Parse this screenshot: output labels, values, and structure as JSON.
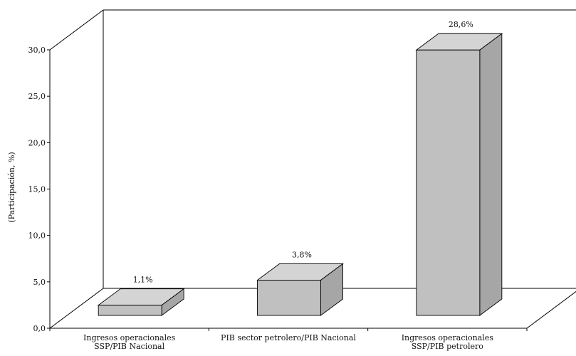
{
  "chart_data": {
    "type": "bar",
    "title": "",
    "xlabel": "",
    "ylabel": "(Participación, %)",
    "ylim": [
      0,
      30
    ],
    "yticks": [
      "0,0",
      "5,0",
      "10,0",
      "15,0",
      "20,0",
      "25,0",
      "30,0"
    ],
    "categories": [
      [
        "Ingresos operacionales",
        "SSP/PIB Nacional"
      ],
      [
        "PIB sector petrolero/PIB Nacional"
      ],
      [
        "Ingresos operacionales",
        "SSP/PIB petrolero"
      ]
    ],
    "values": [
      1.1,
      3.8,
      28.6
    ],
    "data_labels": [
      "1,1%",
      "3,8%",
      "28,6%"
    ],
    "grid": false,
    "legend": "none",
    "colors": {
      "bar_front": "#c0c0c0",
      "bar_top": "#d4d4d4",
      "bar_side": "#a6a6a6"
    }
  }
}
